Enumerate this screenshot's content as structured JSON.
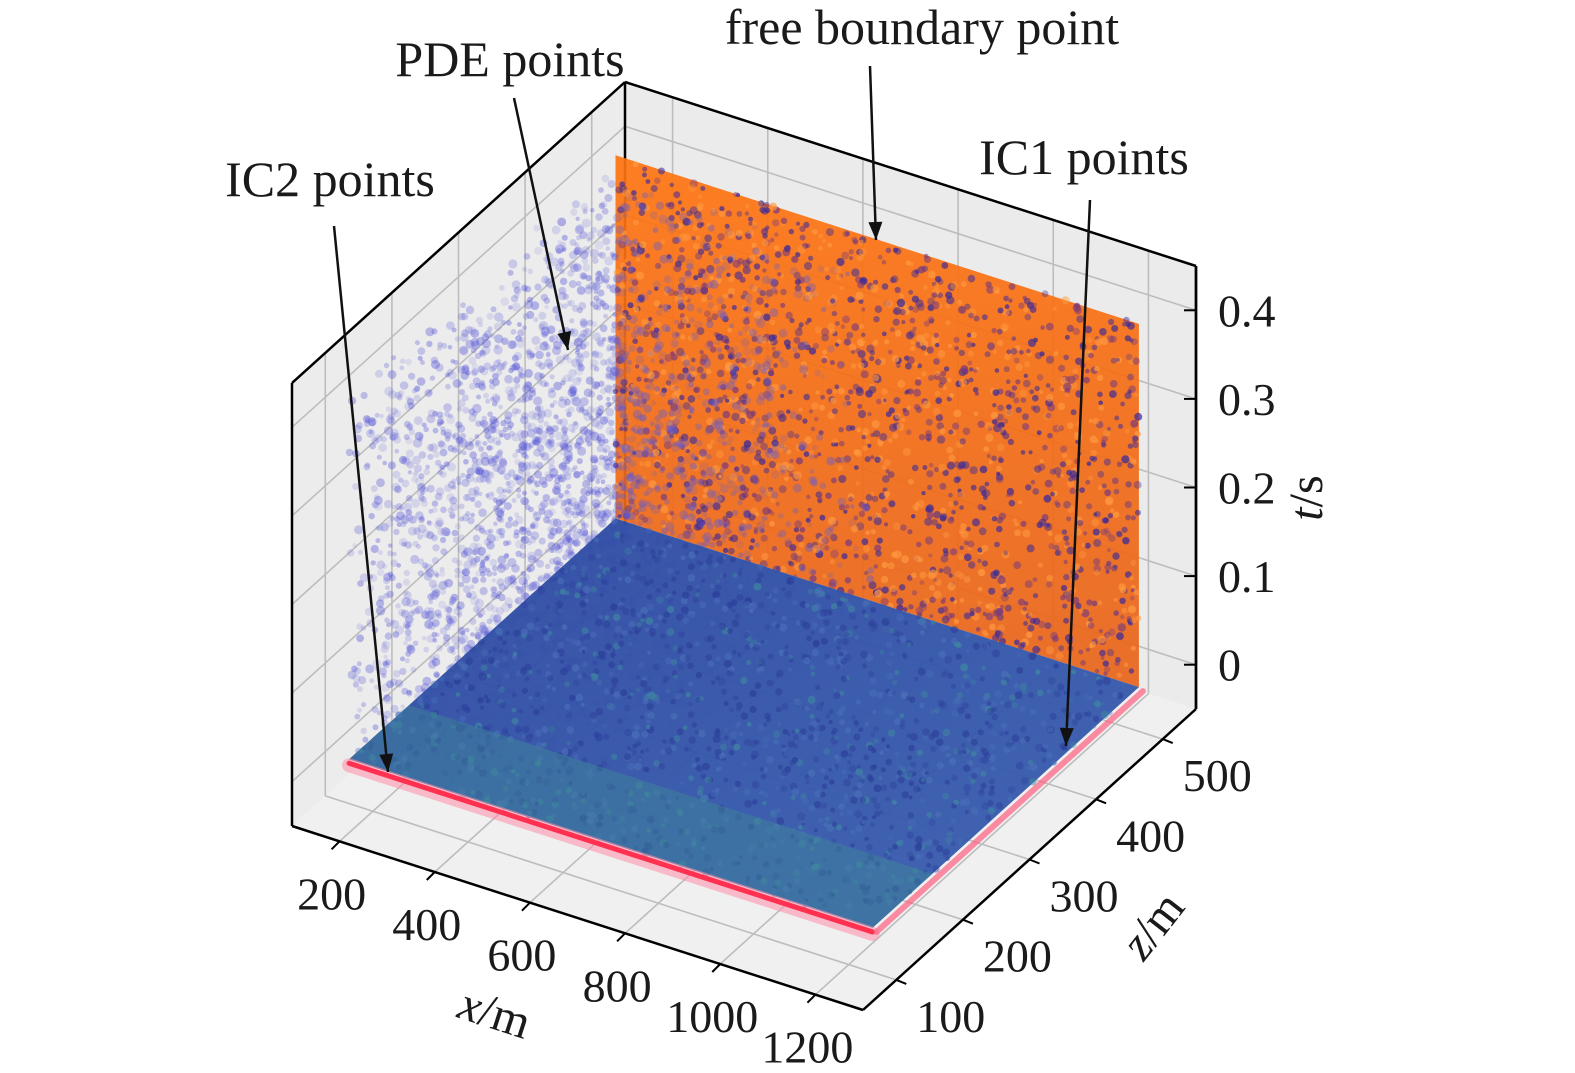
{
  "chart_data": {
    "type": "scatter",
    "projection": "3d",
    "grid": true,
    "xlabel": "x/m",
    "ylabel": "z/m",
    "zlabel": "t/s",
    "xlim": [
      100,
      1300
    ],
    "ylim": [
      50,
      550
    ],
    "zlim": [
      -0.05,
      0.45
    ],
    "x_ticks": [
      200,
      400,
      600,
      800,
      1000,
      1200
    ],
    "x_tick_labels": [
      "200",
      "400",
      "600",
      "800",
      "1000",
      "1200"
    ],
    "y_ticks": [
      100,
      200,
      300,
      400,
      500
    ],
    "y_tick_labels": [
      "100",
      "200",
      "300",
      "400",
      "500"
    ],
    "z_ticks": [
      0,
      0.1,
      0.2,
      0.3,
      0.4
    ],
    "z_tick_labels": [
      "0",
      "0.1",
      "0.2",
      "0.3",
      "0.4"
    ],
    "domain": {
      "x_range": [
        150,
        1250
      ],
      "z_range": [
        100,
        500
      ],
      "t_range": [
        0,
        0.41
      ]
    },
    "series": [
      {
        "name": "PDE points",
        "kind": "volume",
        "color": "#3a4fb8",
        "x_range": [
          150,
          1250
        ],
        "z_range": [
          100,
          500
        ],
        "t_range": [
          0,
          0.41
        ]
      },
      {
        "name": "free boundary point",
        "kind": "surface",
        "color": "#ff7a18",
        "x_range": [
          150,
          1250
        ],
        "z_value": 500,
        "t_range": [
          0,
          0.41
        ]
      },
      {
        "name": "IC1 points",
        "kind": "plane",
        "color": "#2a4fa8",
        "x_range": [
          150,
          1250
        ],
        "z_range": [
          100,
          500
        ],
        "t_value": 0
      },
      {
        "name": "IC2 points",
        "kind": "edge",
        "color": "#ff4060",
        "x_range": [
          150,
          1250
        ],
        "z_value": 100,
        "t_value": 0
      }
    ],
    "annotations": [
      {
        "text": "free boundary point",
        "target": "free boundary point"
      },
      {
        "text": "PDE points",
        "target": "PDE points"
      },
      {
        "text": "IC2 points",
        "target": "IC2 points"
      },
      {
        "text": "IC1 points",
        "target": "IC1 points"
      }
    ]
  }
}
